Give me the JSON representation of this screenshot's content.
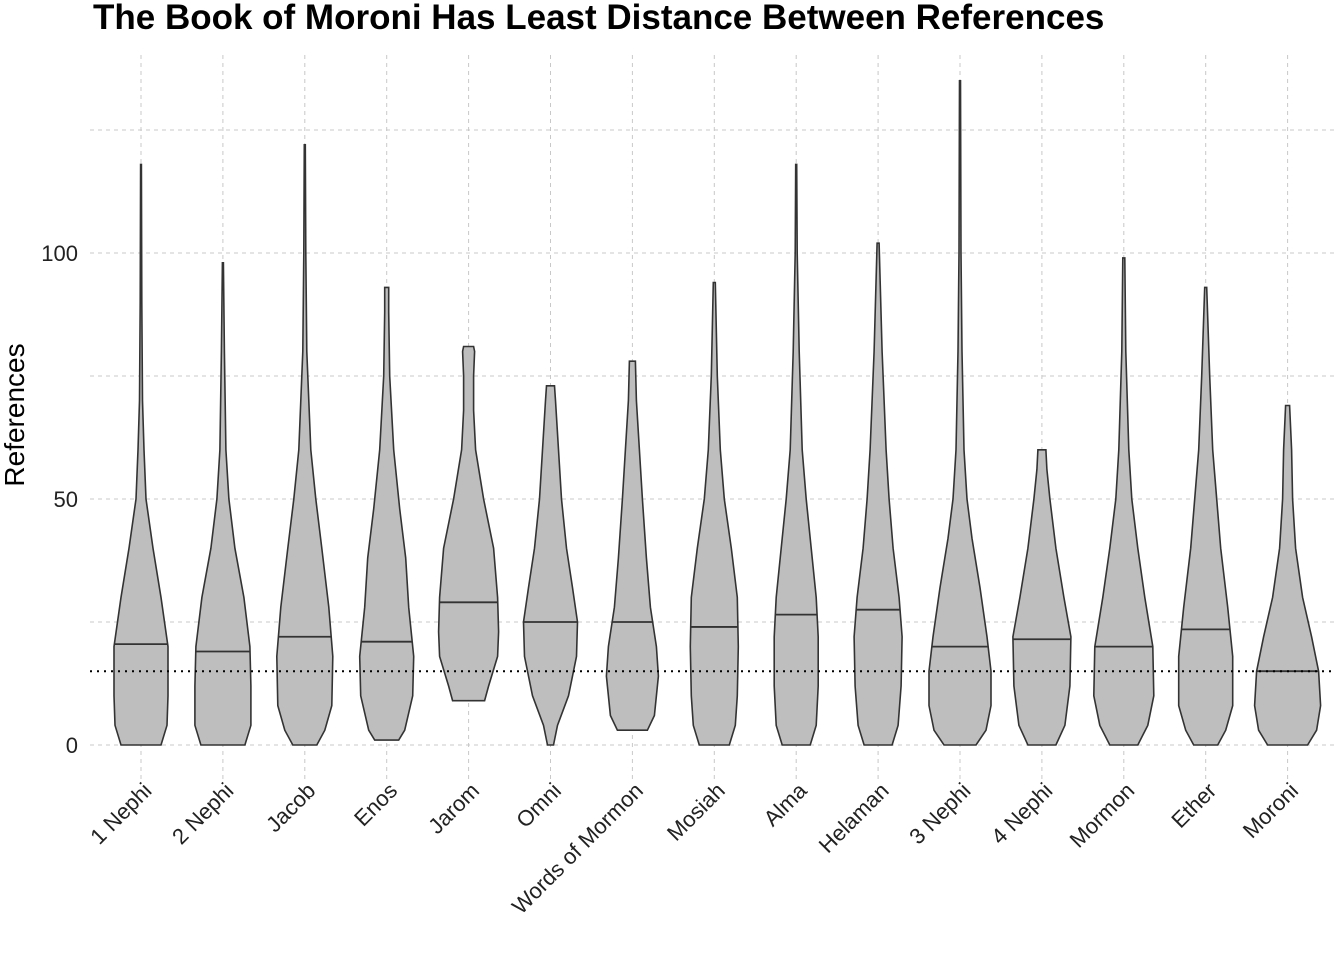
{
  "chart_data": {
    "type": "violin",
    "title": "The Book of Moroni Has Least Distance Between References",
    "xlabel": "",
    "ylabel": "References",
    "ylim": [
      -7,
      140
    ],
    "yticks": [
      0,
      50,
      100
    ],
    "grid": true,
    "reference_line": {
      "y": 15,
      "style": "dotted"
    },
    "colors": {
      "fill": "#bebebe",
      "stroke": "#333333",
      "grid": "#c8c8c8"
    },
    "categories": [
      "1 Nephi",
      "2 Nephi",
      "Jacob",
      "Enos",
      "Jarom",
      "Omni",
      "Words of Mormon",
      "Mosiah",
      "Alma",
      "Helaman",
      "3 Nephi",
      "4 Nephi",
      "Mormon",
      "Ether",
      "Moroni"
    ],
    "violins": [
      {
        "name": "1 Nephi",
        "median": 20.5,
        "profile": [
          [
            0,
            20
          ],
          [
            4,
            26
          ],
          [
            10,
            27
          ],
          [
            20,
            27
          ],
          [
            30,
            20
          ],
          [
            40,
            12
          ],
          [
            50,
            5
          ],
          [
            60,
            3
          ],
          [
            70,
            1.5
          ],
          [
            90,
            0.8
          ],
          [
            118,
            0.4
          ]
        ]
      },
      {
        "name": "2 Nephi",
        "median": 19,
        "profile": [
          [
            0,
            22
          ],
          [
            4,
            28
          ],
          [
            12,
            28
          ],
          [
            20,
            27
          ],
          [
            30,
            21
          ],
          [
            40,
            12
          ],
          [
            50,
            6
          ],
          [
            60,
            3
          ],
          [
            80,
            1.5
          ],
          [
            98,
            0.5
          ]
        ]
      },
      {
        "name": "Jacob",
        "median": 22,
        "profile": [
          [
            0,
            12
          ],
          [
            3,
            20
          ],
          [
            8,
            27
          ],
          [
            18,
            28
          ],
          [
            28,
            24
          ],
          [
            40,
            17
          ],
          [
            50,
            11
          ],
          [
            60,
            6
          ],
          [
            80,
            2
          ],
          [
            100,
            1
          ],
          [
            122,
            0.5
          ]
        ]
      },
      {
        "name": "Enos",
        "median": 21,
        "profile": [
          [
            1,
            12
          ],
          [
            3,
            18
          ],
          [
            10,
            26
          ],
          [
            18,
            27
          ],
          [
            28,
            22
          ],
          [
            38,
            19
          ],
          [
            48,
            13
          ],
          [
            60,
            7
          ],
          [
            75,
            3
          ],
          [
            88,
            2
          ],
          [
            93,
            2
          ]
        ]
      },
      {
        "name": "Jarom",
        "median": 29,
        "profile": [
          [
            9,
            16
          ],
          [
            12,
            20
          ],
          [
            18,
            29
          ],
          [
            23,
            30
          ],
          [
            30,
            29
          ],
          [
            40,
            25
          ],
          [
            50,
            15
          ],
          [
            60,
            7
          ],
          [
            68,
            5
          ],
          [
            75,
            5
          ],
          [
            80,
            6
          ],
          [
            81,
            5
          ]
        ]
      },
      {
        "name": "Omni",
        "median": 25,
        "profile": [
          [
            0,
            3
          ],
          [
            4,
            7
          ],
          [
            10,
            18
          ],
          [
            18,
            26
          ],
          [
            25,
            27
          ],
          [
            32,
            22
          ],
          [
            40,
            16
          ],
          [
            50,
            11
          ],
          [
            60,
            8
          ],
          [
            70,
            5
          ],
          [
            73,
            4
          ]
        ]
      },
      {
        "name": "Words of Mormon",
        "median": 25,
        "profile": [
          [
            3,
            15
          ],
          [
            6,
            22
          ],
          [
            14,
            26
          ],
          [
            20,
            24
          ],
          [
            28,
            18
          ],
          [
            38,
            14
          ],
          [
            50,
            10
          ],
          [
            60,
            7
          ],
          [
            70,
            4
          ],
          [
            78,
            3
          ]
        ]
      },
      {
        "name": "Mosiah",
        "median": 24,
        "profile": [
          [
            0,
            15
          ],
          [
            4,
            21
          ],
          [
            10,
            23
          ],
          [
            20,
            24
          ],
          [
            30,
            23
          ],
          [
            40,
            17
          ],
          [
            50,
            10
          ],
          [
            60,
            6
          ],
          [
            75,
            3
          ],
          [
            94,
            1
          ]
        ]
      },
      {
        "name": "Alma",
        "median": 26.5,
        "profile": [
          [
            0,
            14
          ],
          [
            4,
            20
          ],
          [
            12,
            22
          ],
          [
            22,
            22
          ],
          [
            30,
            20
          ],
          [
            40,
            15
          ],
          [
            50,
            10
          ],
          [
            60,
            6
          ],
          [
            80,
            3
          ],
          [
            100,
            1
          ],
          [
            118,
            0.5
          ]
        ]
      },
      {
        "name": "Helaman",
        "median": 27.5,
        "profile": [
          [
            0,
            14
          ],
          [
            4,
            20
          ],
          [
            12,
            23
          ],
          [
            22,
            24
          ],
          [
            30,
            21
          ],
          [
            40,
            15
          ],
          [
            50,
            11
          ],
          [
            60,
            8
          ],
          [
            80,
            4
          ],
          [
            102,
            1
          ]
        ]
      },
      {
        "name": "3 Nephi",
        "median": 20,
        "profile": [
          [
            0,
            16
          ],
          [
            3,
            26
          ],
          [
            8,
            31
          ],
          [
            15,
            31
          ],
          [
            22,
            27
          ],
          [
            32,
            20
          ],
          [
            42,
            12
          ],
          [
            50,
            7
          ],
          [
            60,
            4
          ],
          [
            80,
            2
          ],
          [
            100,
            1
          ],
          [
            135,
            0.5
          ]
        ]
      },
      {
        "name": "4 Nephi",
        "median": 21.5,
        "profile": [
          [
            0,
            14
          ],
          [
            4,
            23
          ],
          [
            12,
            28
          ],
          [
            22,
            29
          ],
          [
            30,
            22
          ],
          [
            40,
            14
          ],
          [
            50,
            8
          ],
          [
            56,
            5
          ],
          [
            60,
            4
          ]
        ]
      },
      {
        "name": "Mormon",
        "median": 20,
        "profile": [
          [
            0,
            14
          ],
          [
            4,
            24
          ],
          [
            10,
            30
          ],
          [
            20,
            29
          ],
          [
            30,
            21
          ],
          [
            40,
            14
          ],
          [
            50,
            8
          ],
          [
            60,
            5
          ],
          [
            80,
            2
          ],
          [
            99,
            1
          ]
        ]
      },
      {
        "name": "Ether",
        "median": 23.5,
        "profile": [
          [
            0,
            12
          ],
          [
            3,
            20
          ],
          [
            8,
            27
          ],
          [
            18,
            27
          ],
          [
            28,
            22
          ],
          [
            40,
            15
          ],
          [
            50,
            11
          ],
          [
            60,
            7
          ],
          [
            75,
            4
          ],
          [
            93,
            1
          ]
        ]
      },
      {
        "name": "Moroni",
        "median": 15,
        "profile": [
          [
            0,
            20
          ],
          [
            3,
            29
          ],
          [
            8,
            33
          ],
          [
            15,
            31
          ],
          [
            22,
            24
          ],
          [
            30,
            15
          ],
          [
            40,
            8
          ],
          [
            50,
            5
          ],
          [
            60,
            4
          ],
          [
            69,
            2
          ]
        ]
      }
    ]
  }
}
